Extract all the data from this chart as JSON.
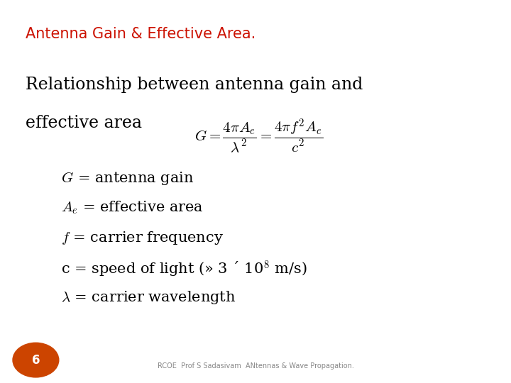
{
  "title": "Antenna Gain & Effective Area.",
  "title_color": "#cc1100",
  "title_fontsize": 15,
  "background_color": "#ffffff",
  "slide_number": "6",
  "slide_number_color": "#ffffff",
  "slide_number_bg": "#cc4400",
  "footer_text": "RCOE  Prof S Sadasivam  ANtennas & Wave Propagation.",
  "footer_color": "#888888",
  "body_text_line1": "Relationship between antenna gain and",
  "body_text_line2": "effective area",
  "body_fontsize": 17,
  "bullet_fontsize": 15,
  "formula_fontsize": 15
}
